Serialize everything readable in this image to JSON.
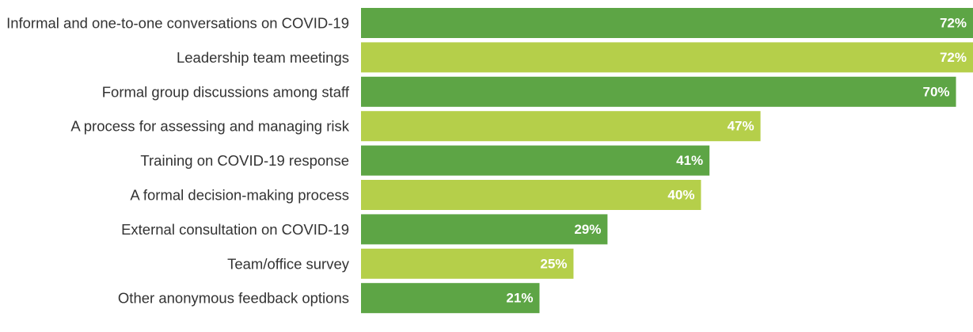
{
  "chart_data": {
    "type": "bar",
    "orientation": "horizontal",
    "title": "",
    "xlabel": "",
    "ylabel": "",
    "xlim": [
      0,
      72
    ],
    "grid": false,
    "legend": "none",
    "value_suffix": "%",
    "colors": [
      "#5da545",
      "#b5cf4a"
    ],
    "categories": [
      "Informal and one-to-one conversations on COVID-19",
      "Leadership team meetings",
      "Formal group discussions among staff",
      "A process for assessing and managing risk",
      "Training on COVID-19 response",
      "A formal decision-making process",
      "External consultation on COVID-19",
      "Team/office survey",
      "Other anonymous feedback options"
    ],
    "values": [
      72,
      72,
      70,
      47,
      41,
      40,
      29,
      25,
      21
    ],
    "value_labels": [
      "72%",
      "72%",
      "70%",
      "47%",
      "41%",
      "40%",
      "29%",
      "25%",
      "21%"
    ]
  }
}
